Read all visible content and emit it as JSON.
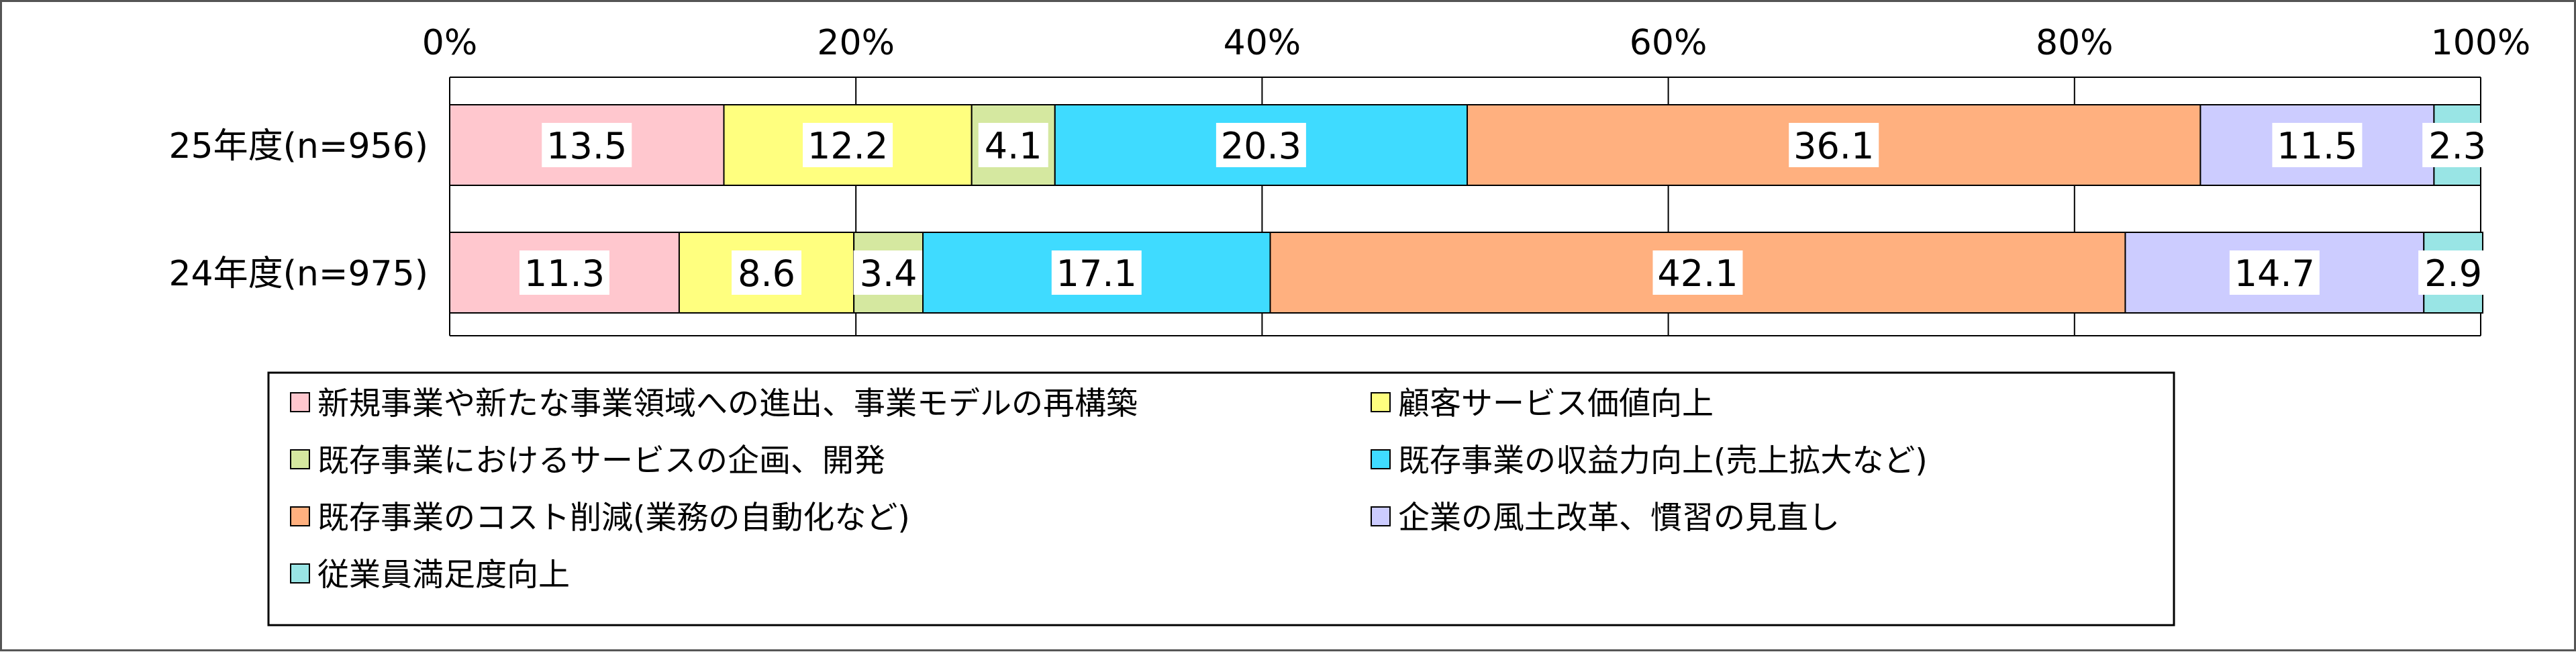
{
  "chart_data": {
    "type": "bar",
    "orientation": "horizontal",
    "stacked": "percent",
    "categories": [
      "25年度(n=956)",
      "24年度(n=975)"
    ],
    "x_ticks": [
      "0%",
      "20%",
      "40%",
      "60%",
      "80%",
      "100%"
    ],
    "xlim": [
      0,
      100
    ],
    "grid": true,
    "legend_position": "bottom",
    "series": [
      {
        "name": "新規事業や新たな事業領域への進出、事業モデルの再構築",
        "color": "#FFC7CE",
        "values": [
          13.5,
          11.3
        ],
        "labels": [
          "13.5",
          "11.3"
        ]
      },
      {
        "name": "顧客サービス価値向上",
        "color": "#FFFF7F",
        "values": [
          12.2,
          8.6
        ],
        "labels": [
          "12.2",
          "8.6"
        ]
      },
      {
        "name": "既存事業におけるサービスの企画、開発",
        "color": "#D5E8A0",
        "values": [
          4.1,
          3.4
        ],
        "labels": [
          "4.1",
          "3.4"
        ]
      },
      {
        "name": "既存事業の収益力向上(売上拡大など)",
        "color": "#3FDBFF",
        "values": [
          20.3,
          17.1
        ],
        "labels": [
          "20.3",
          "17.1"
        ]
      },
      {
        "name": "既存事業のコスト削減(業務の自動化など)",
        "color": "#FFB07F",
        "values": [
          36.1,
          42.1
        ],
        "labels": [
          "36.1",
          "42.1"
        ]
      },
      {
        "name": "企業の風土改革、慣習の見直し",
        "color": "#CCCCFF",
        "values": [
          11.5,
          14.7
        ],
        "labels": [
          "11.5",
          "14.7"
        ]
      },
      {
        "name": "従業員満足度向上",
        "color": "#99E5E5",
        "values": [
          2.3,
          2.9
        ],
        "labels": [
          "2.3",
          "2.9"
        ]
      }
    ]
  }
}
